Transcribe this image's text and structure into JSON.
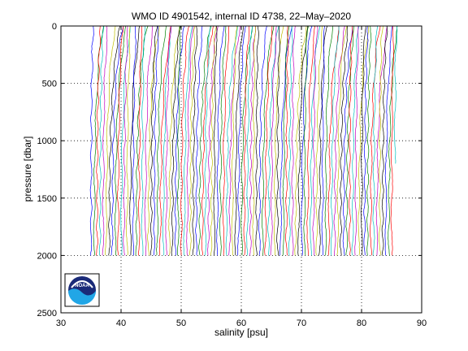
{
  "chart_data": {
    "type": "line",
    "title": "WMO ID 4901542, internal ID 4738, 22–May–2020",
    "xlabel": "salinity [psu]",
    "ylabel": "pressure [dbar]",
    "xlim": [
      30,
      90
    ],
    "ylim": [
      0,
      2500
    ],
    "y_reversed": true,
    "x_ticks": [
      30,
      40,
      50,
      60,
      70,
      80,
      90
    ],
    "y_ticks": [
      0,
      500,
      1000,
      1500,
      2000,
      2500
    ],
    "grid": "dotted",
    "legend": "none",
    "series_description": "waterfall of salinity profiles, each successive profile offset in salinity",
    "profile_count": 102,
    "profile_offset_psu": 0.5,
    "first_profile_deep_salinity": 35.0,
    "last_profile_deep_salinity": 85.6,
    "profile_max_pressure": 2000,
    "last_profile_max_pressure": 1200,
    "colors": [
      "#0000ff",
      "#008000",
      "#ff0000",
      "#00bfbf",
      "#bf00bf",
      "#bfbf00",
      "#000000"
    ]
  },
  "logo": {
    "text": "NOAA",
    "colors": {
      "navy": "#1a2a78",
      "sky": "#21a6e6",
      "white": "#ffffff"
    }
  }
}
